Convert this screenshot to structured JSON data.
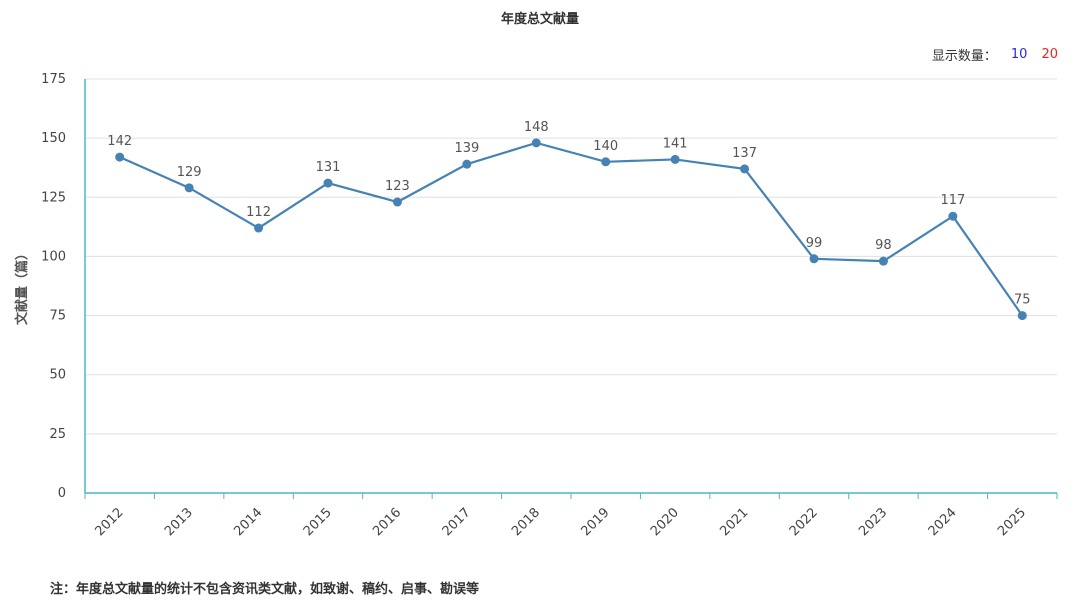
{
  "title": "年度总文献量",
  "count_switch": {
    "label": "显示数量：",
    "options": [
      "10",
      "20"
    ],
    "colors": [
      "#2727e6",
      "#e62727"
    ]
  },
  "footnote": "注：年度总文献量的统计不包含资讯类文献，如致谢、稿约、启事、勘误等",
  "chart_data": {
    "type": "line",
    "title": "年度总文献量",
    "xlabel": "",
    "ylabel": "文献量（篇）",
    "ylim": [
      0,
      175
    ],
    "yticks": [
      0,
      25,
      50,
      75,
      100,
      125,
      150,
      175
    ],
    "grid": true,
    "categories": [
      "2012",
      "2013",
      "2014",
      "2015",
      "2016",
      "2017",
      "2018",
      "2019",
      "2020",
      "2021",
      "2022",
      "2023",
      "2024",
      "2025"
    ],
    "series": [
      {
        "values": [
          142,
          129,
          112,
          131,
          123,
          139,
          148,
          140,
          141,
          137,
          99,
          98,
          117,
          75
        ],
        "color": "#4682b4"
      }
    ],
    "axis_color": "#48b8c8",
    "grid_color": "#e0e0e0"
  }
}
